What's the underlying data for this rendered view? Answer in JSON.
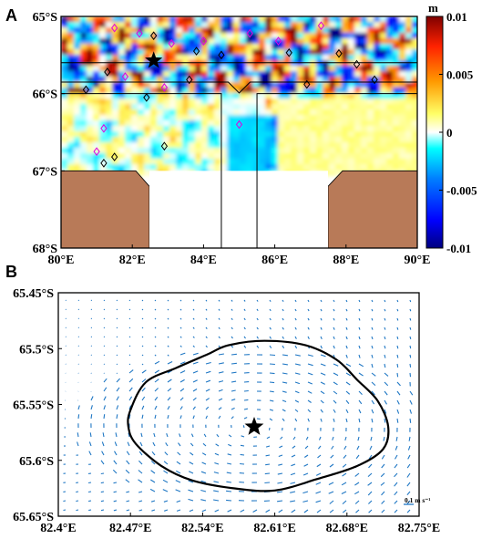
{
  "chart_data": [
    {
      "panel": "A",
      "type": "heatmap",
      "colorbar": {
        "unit": "m",
        "range": [
          -0.01,
          0.01
        ],
        "ticks": [
          0.01,
          0.005,
          0,
          -0.005,
          -0.01
        ],
        "tick_labels": [
          "0.01",
          "0.005",
          "0",
          "-0.005",
          "-0.01"
        ],
        "colors": [
          "#00007f",
          "#0000ff",
          "#007fff",
          "#00ffff",
          "#ffffff",
          "#ffff66",
          "#ff9900",
          "#ff2200",
          "#7f0000"
        ]
      },
      "xlim": [
        80,
        90
      ],
      "ylim": [
        -68,
        -65
      ],
      "x_ticks": [
        80,
        82,
        84,
        86,
        88,
        90
      ],
      "x_tick_labels": [
        "80°E",
        "82°E",
        "84°E",
        "86°E",
        "88°E",
        "90°E"
      ],
      "y_ticks": [
        -65,
        -66,
        -67,
        -68
      ],
      "y_tick_labels": [
        "65°S",
        "66°S",
        "67°S",
        "68°S"
      ],
      "boundary_lines_lat": [
        -65.6,
        -65.85,
        -66.0
      ],
      "notch_lon": 85.0,
      "star": {
        "lon": 82.6,
        "lat": -65.57
      },
      "land_color": "#b87a58",
      "diamonds_magenta": [
        {
          "lon": 81.5,
          "lat": -65.15
        },
        {
          "lon": 82.2,
          "lat": -65.22
        },
        {
          "lon": 83.1,
          "lat": -65.35
        },
        {
          "lon": 84.0,
          "lat": -65.32
        },
        {
          "lon": 85.3,
          "lat": -65.22
        },
        {
          "lon": 81.8,
          "lat": -65.78
        },
        {
          "lon": 82.9,
          "lat": -65.92
        },
        {
          "lon": 81.2,
          "lat": -66.45
        },
        {
          "lon": 81.0,
          "lat": -66.75
        },
        {
          "lon": 85.0,
          "lat": -66.4
        },
        {
          "lon": 86.1,
          "lat": -65.32
        },
        {
          "lon": 87.3,
          "lat": -65.12
        }
      ],
      "diamonds_black": [
        {
          "lon": 82.6,
          "lat": -65.25
        },
        {
          "lon": 83.8,
          "lat": -65.45
        },
        {
          "lon": 84.5,
          "lat": -65.5
        },
        {
          "lon": 86.4,
          "lat": -65.47
        },
        {
          "lon": 87.8,
          "lat": -65.48
        },
        {
          "lon": 88.3,
          "lat": -65.62
        },
        {
          "lon": 81.3,
          "lat": -65.72
        },
        {
          "lon": 80.7,
          "lat": -65.95
        },
        {
          "lon": 82.4,
          "lat": -66.05
        },
        {
          "lon": 83.6,
          "lat": -65.82
        },
        {
          "lon": 86.9,
          "lat": -65.88
        },
        {
          "lon": 88.8,
          "lat": -65.82
        },
        {
          "lon": 81.5,
          "lat": -66.82
        },
        {
          "lon": 81.2,
          "lat": -66.9
        },
        {
          "lon": 82.9,
          "lat": -66.68
        }
      ]
    },
    {
      "panel": "B",
      "type": "quiver",
      "xlim": [
        82.4,
        82.75
      ],
      "ylim": [
        -65.65,
        -65.45
      ],
      "x_ticks": [
        82.4,
        82.47,
        82.54,
        82.61,
        82.68,
        82.75
      ],
      "x_tick_labels": [
        "82.4°E",
        "82.47°E",
        "82.54°E",
        "82.61°E",
        "82.68°E",
        "82.75°E"
      ],
      "y_ticks": [
        -65.45,
        -65.5,
        -65.55,
        -65.6,
        -65.65
      ],
      "y_tick_labels": [
        "65.45°S",
        "65.5°S",
        "65.55°S",
        "65.6°S",
        "65.65°S"
      ],
      "eddy_center": {
        "lon": 82.59,
        "lat": -65.57
      },
      "eddy_rotation": "clockwise",
      "eddy_boundary": [
        {
          "lon": 82.47,
          "lat": -65.555
        },
        {
          "lon": 82.485,
          "lat": -65.53
        },
        {
          "lon": 82.515,
          "lat": -65.517
        },
        {
          "lon": 82.545,
          "lat": -65.505
        },
        {
          "lon": 82.565,
          "lat": -65.497
        },
        {
          "lon": 82.6,
          "lat": -65.493
        },
        {
          "lon": 82.64,
          "lat": -65.497
        },
        {
          "lon": 82.67,
          "lat": -65.51
        },
        {
          "lon": 82.69,
          "lat": -65.528
        },
        {
          "lon": 82.71,
          "lat": -65.547
        },
        {
          "lon": 82.72,
          "lat": -65.57
        },
        {
          "lon": 82.715,
          "lat": -65.59
        },
        {
          "lon": 82.69,
          "lat": -65.605
        },
        {
          "lon": 82.65,
          "lat": -65.617
        },
        {
          "lon": 82.61,
          "lat": -65.627
        },
        {
          "lon": 82.57,
          "lat": -65.625
        },
        {
          "lon": 82.53,
          "lat": -65.618
        },
        {
          "lon": 82.5,
          "lat": -65.605
        },
        {
          "lon": 82.475,
          "lat": -65.585
        },
        {
          "lon": 82.468,
          "lat": -65.57
        }
      ],
      "vector_color": "#1f77c4",
      "scale_label": "0.1 m s⁻¹"
    }
  ],
  "labels": {
    "panel_a": "A",
    "panel_b": "B"
  }
}
